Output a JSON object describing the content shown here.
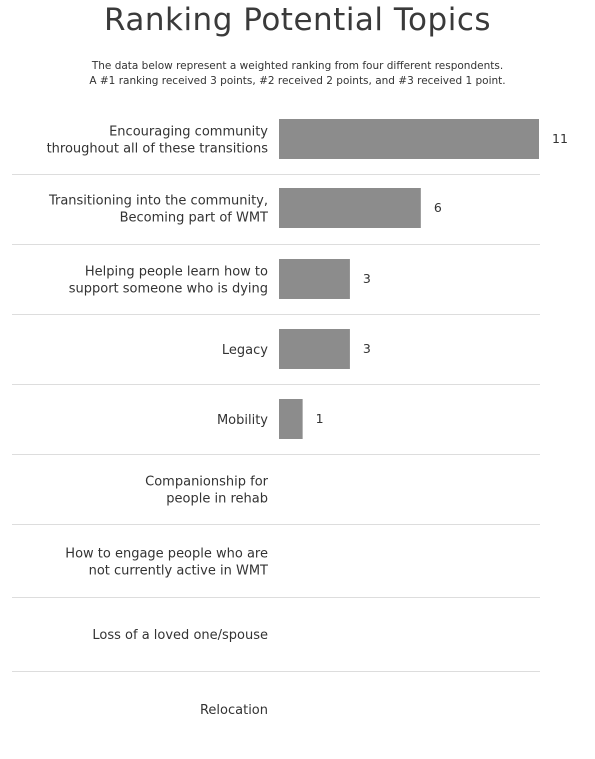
{
  "chart_data": {
    "type": "bar",
    "orientation": "horizontal",
    "title": "Ranking Potential Topics",
    "subtitle_lines": [
      "The data below represent a weighted ranking from four different respondents.",
      "A #1 ranking received 3 points, #2 received 2 points, and #3 received 1 point."
    ],
    "categories": [
      [
        "Encouraging community",
        "throughout all of these transitions"
      ],
      [
        "Transitioning into the community,",
        "Becoming part of WMT"
      ],
      [
        "Helping people learn how to",
        "support someone who is dying"
      ],
      [
        "Legacy"
      ],
      [
        "Mobility"
      ],
      [
        "Companionship for",
        "people in rehab"
      ],
      [
        "How to engage people who are",
        "not currently active in WMT"
      ],
      [
        "Loss of a loved one/spouse"
      ],
      [
        "Relocation"
      ]
    ],
    "values": [
      11,
      6,
      3,
      3,
      1,
      null,
      null,
      null,
      null
    ],
    "value_labels": [
      "11",
      "6",
      "3",
      "3",
      "1",
      "",
      "",
      "",
      ""
    ],
    "xlim": [
      0,
      11
    ],
    "bar_color": "#8c8c8c",
    "separator_color": "#dddddd",
    "grid": false,
    "legend": "none"
  }
}
